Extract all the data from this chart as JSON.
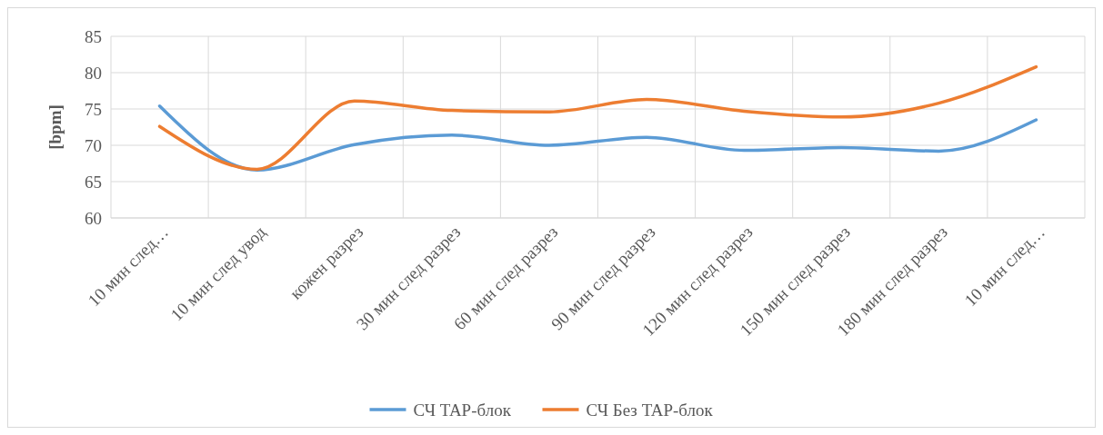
{
  "chart_data": {
    "type": "line",
    "ylabel": "[bpm]",
    "categories": [
      "10 мин след…",
      "10 мин след увод",
      "кожен разрез",
      "30 мин след разрез",
      "60 мин след разрез",
      "90 мин след разрез",
      "120 мин след разрез",
      "150 мин след разрез",
      "180 мин след разрез",
      "10 мин след…"
    ],
    "series": [
      {
        "name": "СЧ TAP-блок",
        "color": "#5b9bd5",
        "values": [
          75.4,
          66.6,
          70.1,
          71.4,
          70.0,
          71.1,
          69.3,
          69.7,
          69.2,
          73.5
        ]
      },
      {
        "name": "СЧ Без TAP-блок",
        "color": "#ed7d31",
        "values": [
          72.6,
          66.7,
          76.1,
          74.8,
          74.6,
          76.3,
          74.7,
          73.9,
          75.8,
          80.8
        ]
      }
    ],
    "ylim": [
      60,
      85
    ],
    "yticks": [
      60,
      65,
      70,
      75,
      80,
      85
    ],
    "grid": true,
    "legend": "bottom",
    "marker": "none",
    "line_style": "solid"
  }
}
